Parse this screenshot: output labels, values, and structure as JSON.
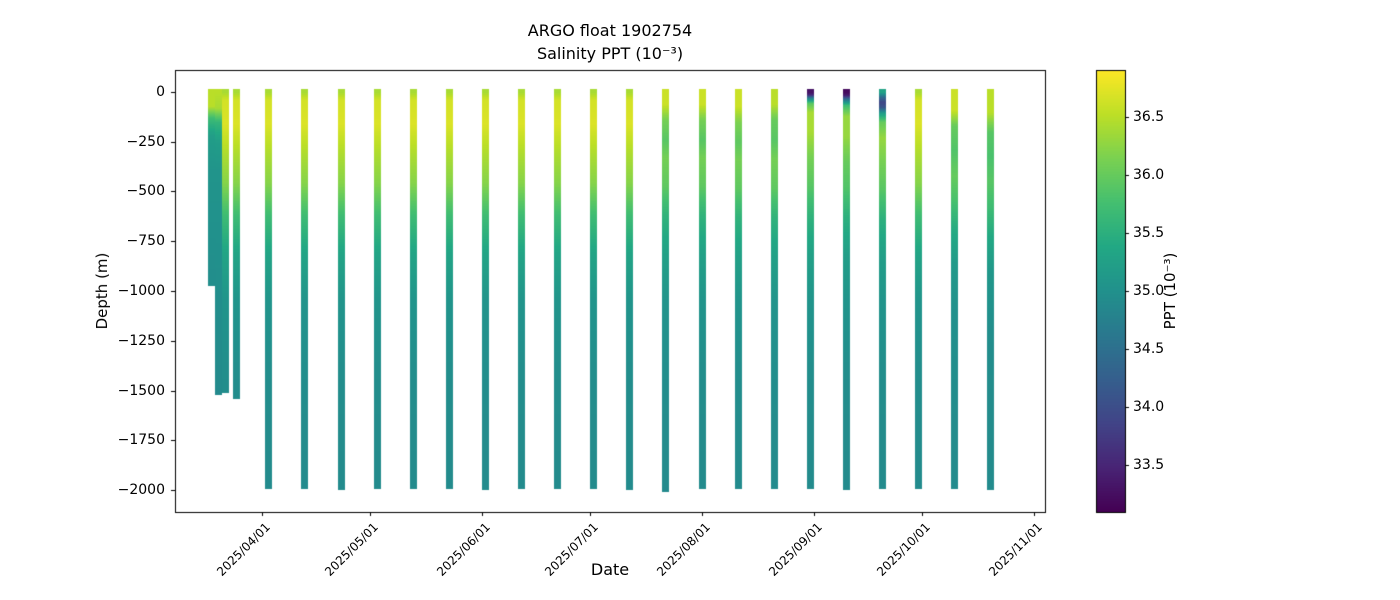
{
  "figure": {
    "title": "ARGO float 1902754",
    "subtitle": "Salinity PPT (10⁻³)",
    "xlabel": "Date",
    "ylabel": "Depth (m)"
  },
  "colorbar": {
    "label": "PPT (10⁻³)",
    "vmin": 33.1,
    "vmax": 36.9,
    "ticks": [
      {
        "value": 33.5,
        "label": "33.5"
      },
      {
        "value": 34.0,
        "label": "34.0"
      },
      {
        "value": 34.5,
        "label": "34.5"
      },
      {
        "value": 35.0,
        "label": "35.0"
      },
      {
        "value": 35.5,
        "label": "35.5"
      },
      {
        "value": 36.0,
        "label": "36.0"
      },
      {
        "value": 36.5,
        "label": "36.5"
      }
    ]
  },
  "chart_data": {
    "type": "scatter",
    "title": "ARGO float 1902754",
    "subtitle": "Salinity PPT (10⁻³)",
    "xlabel": "Date",
    "ylabel": "Depth (m)",
    "x_domain": [
      "2025-03-08",
      "2025-11-04"
    ],
    "y_domain": [
      110,
      -2110
    ],
    "marker_px": 7,
    "y_ticks": [
      {
        "value": 0,
        "label": "0"
      },
      {
        "value": -250,
        "label": "−250"
      },
      {
        "value": -500,
        "label": "−500"
      },
      {
        "value": -750,
        "label": "−750"
      },
      {
        "value": -1000,
        "label": "−1000"
      },
      {
        "value": -1250,
        "label": "−1250"
      },
      {
        "value": -1500,
        "label": "−1500"
      },
      {
        "value": -1750,
        "label": "−1750"
      },
      {
        "value": -2000,
        "label": "−2000"
      }
    ],
    "x_ticks": [
      {
        "value": "2025-04-01",
        "label": "2025/04/01"
      },
      {
        "value": "2025-05-01",
        "label": "2025/05/01"
      },
      {
        "value": "2025-06-01",
        "label": "2025/06/01"
      },
      {
        "value": "2025-07-01",
        "label": "2025/07/01"
      },
      {
        "value": "2025-08-01",
        "label": "2025/08/01"
      },
      {
        "value": "2025-09-01",
        "label": "2025/09/01"
      },
      {
        "value": "2025-10-01",
        "label": "2025/10/01"
      },
      {
        "value": "2025-11-01",
        "label": "2025/11/01"
      }
    ],
    "colormap": {
      "name": "viridis",
      "stops": [
        [
          0.0,
          "#440154"
        ],
        [
          0.1,
          "#482475"
        ],
        [
          0.2,
          "#414487"
        ],
        [
          0.3,
          "#355f8d"
        ],
        [
          0.4,
          "#2a788e"
        ],
        [
          0.5,
          "#21918c"
        ],
        [
          0.6,
          "#22a884"
        ],
        [
          0.7,
          "#44bf70"
        ],
        [
          0.8,
          "#7ad151"
        ],
        [
          0.9,
          "#bddf26"
        ],
        [
          1.0,
          "#fde725"
        ]
      ]
    },
    "default_profile": [
      [
        0,
        36.4
      ],
      [
        -40,
        36.65
      ],
      [
        -160,
        36.7
      ],
      [
        -300,
        36.45
      ],
      [
        -460,
        36.2
      ],
      [
        -620,
        35.7
      ],
      [
        -820,
        35.3
      ],
      [
        -1050,
        35.05
      ],
      [
        -1400,
        34.95
      ],
      [
        -2000,
        34.9
      ]
    ],
    "profiles": [
      {
        "date": "2025-03-18",
        "max_depth": -955,
        "points": [
          [
            0,
            36.5
          ],
          [
            -70,
            36.5
          ],
          [
            -130,
            35.7
          ],
          [
            -220,
            35.2
          ],
          [
            -400,
            35.05
          ],
          [
            -700,
            35.0
          ],
          [
            -955,
            34.95
          ]
        ]
      },
      {
        "date": "2025-03-20",
        "max_depth": -1500,
        "points": [
          [
            0,
            36.5
          ],
          [
            -80,
            36.4
          ],
          [
            -150,
            35.6
          ],
          [
            -250,
            35.2
          ],
          [
            -400,
            35.05
          ],
          [
            -700,
            35.0
          ],
          [
            -1500,
            34.9
          ]
        ]
      },
      {
        "date": "2025-03-22",
        "max_depth": -1490
      },
      {
        "date": "2025-03-25",
        "max_depth": -1520
      },
      {
        "date": "2025-04-03",
        "max_depth": -1975
      },
      {
        "date": "2025-04-13",
        "max_depth": -1975
      },
      {
        "date": "2025-04-23",
        "max_depth": -1978
      },
      {
        "date": "2025-05-03",
        "max_depth": -1975
      },
      {
        "date": "2025-05-13",
        "max_depth": -1976
      },
      {
        "date": "2025-05-23",
        "max_depth": -1975
      },
      {
        "date": "2025-06-02",
        "max_depth": -1977
      },
      {
        "date": "2025-06-12",
        "max_depth": -1975
      },
      {
        "date": "2025-06-22",
        "max_depth": -1976
      },
      {
        "date": "2025-07-02",
        "max_depth": -1975
      },
      {
        "date": "2025-07-12",
        "max_depth": -1978
      },
      {
        "date": "2025-07-22",
        "max_depth": -1990,
        "points": [
          [
            0,
            36.6
          ],
          [
            -60,
            36.6
          ],
          [
            -140,
            36.1
          ],
          [
            -240,
            35.9
          ],
          [
            -330,
            36.1
          ],
          [
            -470,
            35.95
          ],
          [
            -620,
            35.55
          ],
          [
            -820,
            35.25
          ],
          [
            -1050,
            35.05
          ],
          [
            -1400,
            34.95
          ],
          [
            -2000,
            34.9
          ]
        ]
      },
      {
        "date": "2025-08-01",
        "max_depth": -1975,
        "points": [
          [
            0,
            36.6
          ],
          [
            -60,
            36.6
          ],
          [
            -140,
            36.1
          ],
          [
            -240,
            35.9
          ],
          [
            -330,
            36.1
          ],
          [
            -470,
            35.95
          ],
          [
            -620,
            35.55
          ],
          [
            -820,
            35.25
          ],
          [
            -1050,
            35.05
          ],
          [
            -1400,
            34.95
          ],
          [
            -2000,
            34.9
          ]
        ]
      },
      {
        "date": "2025-08-11",
        "max_depth": -1976,
        "points": [
          [
            0,
            36.6
          ],
          [
            -70,
            36.6
          ],
          [
            -150,
            36.15
          ],
          [
            -250,
            35.95
          ],
          [
            -340,
            36.1
          ],
          [
            -480,
            35.95
          ],
          [
            -630,
            35.55
          ],
          [
            -830,
            35.25
          ],
          [
            -1050,
            35.05
          ],
          [
            -1400,
            34.95
          ],
          [
            -2000,
            34.9
          ]
        ]
      },
      {
        "date": "2025-08-21",
        "max_depth": -1975,
        "points": [
          [
            0,
            36.5
          ],
          [
            -60,
            36.5
          ],
          [
            -140,
            36.0
          ],
          [
            -240,
            35.9
          ],
          [
            -340,
            36.1
          ],
          [
            -480,
            35.95
          ],
          [
            -630,
            35.55
          ],
          [
            -830,
            35.25
          ],
          [
            -1050,
            35.05
          ],
          [
            -1400,
            34.95
          ],
          [
            -2000,
            34.9
          ]
        ]
      },
      {
        "date": "2025-08-31",
        "max_depth": -1975,
        "points": [
          [
            0,
            33.3
          ],
          [
            -12,
            33.5
          ],
          [
            -30,
            34.8
          ],
          [
            -55,
            35.9
          ],
          [
            -100,
            36.4
          ],
          [
            -200,
            36.4
          ],
          [
            -330,
            36.1
          ],
          [
            -470,
            35.9
          ],
          [
            -620,
            35.55
          ],
          [
            -820,
            35.25
          ],
          [
            -1050,
            35.05
          ],
          [
            -1400,
            34.95
          ],
          [
            -2000,
            34.9
          ]
        ]
      },
      {
        "date": "2025-09-10",
        "max_depth": -1978,
        "points": [
          [
            0,
            33.2
          ],
          [
            -15,
            33.4
          ],
          [
            -35,
            34.5
          ],
          [
            -65,
            35.7
          ],
          [
            -120,
            36.3
          ],
          [
            -220,
            36.3
          ],
          [
            -350,
            36.0
          ],
          [
            -480,
            35.85
          ],
          [
            -630,
            35.5
          ],
          [
            -830,
            35.2
          ],
          [
            -1050,
            35.05
          ],
          [
            -1400,
            34.95
          ],
          [
            -2000,
            34.9
          ]
        ]
      },
      {
        "date": "2025-09-20",
        "max_depth": -1975,
        "points": [
          [
            0,
            35.3
          ],
          [
            -25,
            34.4
          ],
          [
            -50,
            33.9
          ],
          [
            -75,
            34.1
          ],
          [
            -105,
            35.2
          ],
          [
            -150,
            36.0
          ],
          [
            -230,
            36.3
          ],
          [
            -360,
            36.1
          ],
          [
            -490,
            35.9
          ],
          [
            -640,
            35.5
          ],
          [
            -840,
            35.2
          ],
          [
            -1050,
            35.05
          ],
          [
            -1400,
            34.95
          ],
          [
            -2000,
            34.9
          ]
        ]
      },
      {
        "date": "2025-09-30",
        "max_depth": -1976
      },
      {
        "date": "2025-10-10",
        "max_depth": -1975,
        "points": [
          [
            0,
            36.6
          ],
          [
            -90,
            36.6
          ],
          [
            -170,
            36.0
          ],
          [
            -290,
            35.85
          ],
          [
            -420,
            36.0
          ],
          [
            -540,
            35.8
          ],
          [
            -680,
            35.45
          ],
          [
            -860,
            35.15
          ],
          [
            -1100,
            35.0
          ],
          [
            -1400,
            34.95
          ],
          [
            -2000,
            34.9
          ]
        ]
      },
      {
        "date": "2025-10-20",
        "max_depth": -1978,
        "points": [
          [
            0,
            36.5
          ],
          [
            -100,
            36.5
          ],
          [
            -200,
            35.9
          ],
          [
            -320,
            35.8
          ],
          [
            -450,
            35.9
          ],
          [
            -580,
            35.7
          ],
          [
            -720,
            35.4
          ],
          [
            -900,
            35.1
          ],
          [
            -1200,
            34.95
          ],
          [
            -2000,
            34.9
          ]
        ]
      }
    ]
  }
}
